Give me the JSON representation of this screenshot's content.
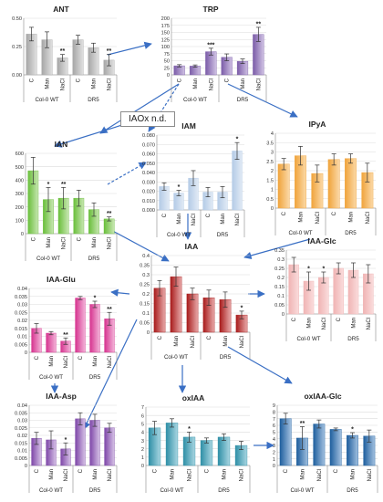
{
  "figure": {
    "boxes": {
      "iaox": "IAOx n.d."
    }
  },
  "chart_data": [
    {
      "type": "bar",
      "title": "ANT",
      "ylim": [
        0,
        0.5
      ],
      "ticks": [
        0,
        0.25,
        0.5
      ],
      "tick_labels": [
        "0.00",
        "0.25",
        "0.50"
      ],
      "categories": [
        "C",
        "Man",
        "NaCl",
        "C",
        "Man",
        "NaCl"
      ],
      "groups": [
        "Col-0 WT",
        "DR5"
      ],
      "values": [
        0.36,
        0.31,
        0.15,
        0.31,
        0.24,
        0.13
      ],
      "errors": [
        0.06,
        0.07,
        0.03,
        0.04,
        0.04,
        0.05
      ],
      "sig": [
        "",
        "",
        "**",
        "",
        "",
        "**"
      ],
      "colors": [
        "#a6a6a6",
        "#a6a6a6",
        "#a6a6a6",
        "#a6a6a6",
        "#a6a6a6",
        "#a6a6a6"
      ],
      "colors_light": [
        "#e0e0e0",
        "#e0e0e0",
        "#e0e0e0",
        "#e0e0e0",
        "#e0e0e0",
        "#e0e0e0"
      ],
      "label_color": "#222222"
    },
    {
      "type": "bar",
      "title": "TRP",
      "ylim": [
        0,
        200
      ],
      "ticks": [
        0,
        25,
        50,
        75,
        100,
        125,
        150,
        175,
        200
      ],
      "tick_labels": [
        "0",
        "25",
        "50",
        "75",
        "100",
        "125",
        "150",
        "175",
        "200"
      ],
      "categories": [
        "C",
        "Man",
        "NaCl",
        "C",
        "Man",
        "NaCl"
      ],
      "groups": [
        "Col-0 WT",
        "DR5"
      ],
      "values": [
        32,
        31,
        82,
        62,
        48,
        143
      ],
      "errors": [
        4,
        4,
        12,
        12,
        8,
        25
      ],
      "sig": [
        "",
        "",
        "***",
        "",
        "",
        "**"
      ],
      "colors": [
        "#7b5ca8",
        "#7b5ca8",
        "#7b5ca8",
        "#7b5ca8",
        "#7b5ca8",
        "#7b5ca8"
      ],
      "colors_light": [
        "#cfc1e3",
        "#cfc1e3",
        "#cfc1e3",
        "#cfc1e3",
        "#cfc1e3",
        "#cfc1e3"
      ],
      "label_color": "#222222"
    },
    {
      "type": "bar",
      "title": "IAN",
      "ylim": [
        0,
        600
      ],
      "ticks": [
        0,
        100,
        200,
        300,
        400,
        500,
        600
      ],
      "tick_labels": [
        "0",
        "100",
        "200",
        "300",
        "400",
        "500",
        "600"
      ],
      "categories": [
        "C",
        "Man",
        "NaCl",
        "C",
        "Man",
        "NaCl"
      ],
      "groups": [
        "Col-0 WT",
        "DR5"
      ],
      "values": [
        470,
        255,
        265,
        265,
        180,
        110
      ],
      "errors": [
        100,
        90,
        80,
        60,
        50,
        15
      ],
      "sig": [
        "",
        "*",
        "**",
        "",
        "",
        "**"
      ],
      "colors": [
        "#6abf3c",
        "#6abf3c",
        "#6abf3c",
        "#6abf3c",
        "#6abf3c",
        "#6abf3c"
      ],
      "colors_light": [
        "#c8e6b2",
        "#c8e6b2",
        "#c8e6b2",
        "#c8e6b2",
        "#c8e6b2",
        "#c8e6b2"
      ],
      "label_color": "#222222"
    },
    {
      "type": "bar",
      "title": "IAM",
      "ylim": [
        0,
        0.08
      ],
      "ticks": [
        0,
        0.01,
        0.02,
        0.03,
        0.04,
        0.05,
        0.06,
        0.07,
        0.08
      ],
      "tick_labels": [
        "0.000",
        "0.010",
        "0.020",
        "0.030",
        "0.040",
        "0.050",
        "0.060",
        "0.070",
        "0.080"
      ],
      "categories": [
        "C",
        "Man",
        "NaCl",
        "C",
        "Man",
        "NaCl"
      ],
      "groups": [
        "Col-0 WT",
        "DR5"
      ],
      "values": [
        0.025,
        0.018,
        0.034,
        0.019,
        0.019,
        0.063
      ],
      "errors": [
        0.004,
        0.003,
        0.008,
        0.005,
        0.006,
        0.009
      ],
      "sig": [
        "",
        "*",
        "",
        "",
        "",
        "*"
      ],
      "colors": [
        "#b4cbe6",
        "#b4cbe6",
        "#b4cbe6",
        "#b4cbe6",
        "#b4cbe6",
        "#b4cbe6"
      ],
      "colors_light": [
        "#e1eaf5",
        "#e1eaf5",
        "#e1eaf5",
        "#e1eaf5",
        "#e1eaf5",
        "#e1eaf5"
      ],
      "label_color": "#222222"
    },
    {
      "type": "bar",
      "title": "IPyA",
      "ylim": [
        0,
        4
      ],
      "ticks": [
        0,
        0.5,
        1,
        1.5,
        2,
        2.5,
        3,
        3.5,
        4
      ],
      "tick_labels": [
        "0",
        "0.5",
        "1",
        "1.5",
        "2",
        "2.5",
        "3",
        "3.5",
        "4"
      ],
      "categories": [
        "C",
        "Man",
        "NaCl",
        "C",
        "Man",
        "NaCl"
      ],
      "groups": [
        "Col-0 WT",
        "DR5"
      ],
      "values": [
        2.35,
        2.8,
        1.85,
        2.6,
        2.65,
        1.9
      ],
      "errors": [
        0.3,
        0.5,
        0.45,
        0.3,
        0.25,
        0.5
      ],
      "sig": [
        "",
        "",
        "",
        "",
        "",
        ""
      ],
      "colors": [
        "#f0a43c",
        "#f0a43c",
        "#f0a43c",
        "#f0a43c",
        "#f0a43c",
        "#f0a43c"
      ],
      "colors_light": [
        "#fbd9a8",
        "#fbd9a8",
        "#fbd9a8",
        "#fbd9a8",
        "#fbd9a8",
        "#fbd9a8"
      ],
      "label_color": "#222222"
    },
    {
      "type": "bar",
      "title": "IAA",
      "ylim": [
        0,
        0.4
      ],
      "ticks": [
        0,
        0.05,
        0.1,
        0.15,
        0.2,
        0.25,
        0.3,
        0.35,
        0.4
      ],
      "tick_labels": [
        "0",
        "0.05",
        "0.1",
        "0.15",
        "0.2",
        "0.25",
        "0.3",
        "0.35",
        "0.4"
      ],
      "categories": [
        "C",
        "Man",
        "NaCl",
        "C",
        "Man",
        "NaCl"
      ],
      "groups": [
        "Col-0 WT",
        "DR5"
      ],
      "values": [
        0.23,
        0.29,
        0.2,
        0.18,
        0.17,
        0.09
      ],
      "errors": [
        0.04,
        0.05,
        0.03,
        0.04,
        0.04,
        0.02
      ],
      "sig": [
        "",
        "",
        "",
        "",
        "",
        "*"
      ],
      "colors": [
        "#a81c1c",
        "#a81c1c",
        "#a81c1c",
        "#a81c1c",
        "#a81c1c",
        "#a81c1c"
      ],
      "colors_light": [
        "#e8a9a9",
        "#e8a9a9",
        "#e8a9a9",
        "#e8a9a9",
        "#e8a9a9",
        "#e8a9a9"
      ],
      "label_color": "#222222"
    },
    {
      "type": "bar",
      "title": "IAA-Glc",
      "ylim": [
        0,
        0.35
      ],
      "ticks": [
        0,
        0.05,
        0.1,
        0.15,
        0.2,
        0.25,
        0.3,
        0.35
      ],
      "tick_labels": [
        "0",
        "0.05",
        "0.1",
        "0.15",
        "0.2",
        "0.25",
        "0.3",
        "0.35"
      ],
      "categories": [
        "C",
        "Man",
        "NaCl",
        "C",
        "Man",
        "NaCl"
      ],
      "groups": [
        "Col-0 WT",
        "DR5"
      ],
      "values": [
        0.27,
        0.18,
        0.2,
        0.25,
        0.24,
        0.22
      ],
      "errors": [
        0.04,
        0.05,
        0.03,
        0.03,
        0.04,
        0.05
      ],
      "sig": [
        "",
        "*",
        "*",
        "",
        "",
        ""
      ],
      "colors": [
        "#f0b4b4",
        "#f0b4b4",
        "#f0b4b4",
        "#f0b4b4",
        "#f0b4b4",
        "#f0b4b4"
      ],
      "colors_light": [
        "#fadcdc",
        "#fadcdc",
        "#fadcdc",
        "#fadcdc",
        "#fadcdc",
        "#fadcdc"
      ],
      "label_color": "#222222"
    },
    {
      "type": "bar",
      "title": "IAA-Glu",
      "ylim": [
        0,
        0.04
      ],
      "ticks": [
        0,
        0.005,
        0.01,
        0.015,
        0.02,
        0.025,
        0.03,
        0.035,
        0.04
      ],
      "tick_labels": [
        "0",
        "0.005",
        "0.01",
        "0.015",
        "0.02",
        "0.025",
        "0.03",
        "0.035",
        "0.04"
      ],
      "categories": [
        "C",
        "Man",
        "NaCl",
        "C",
        "Man",
        "NaCl"
      ],
      "groups": [
        "Col-0 WT",
        "DR5"
      ],
      "values": [
        0.015,
        0.012,
        0.007,
        0.034,
        0.03,
        0.021
      ],
      "errors": [
        0.003,
        0.001,
        0.002,
        0.001,
        0.002,
        0.004
      ],
      "sig": [
        "",
        "",
        "**",
        "",
        "*",
        "**"
      ],
      "colors": [
        "#d6338f",
        "#d6338f",
        "#d6338f",
        "#d6338f",
        "#d6338f",
        "#d6338f"
      ],
      "colors_light": [
        "#f3b3d8",
        "#f3b3d8",
        "#f3b3d8",
        "#f3b3d8",
        "#f3b3d8",
        "#f3b3d8"
      ],
      "label_color": "#222222"
    },
    {
      "type": "bar",
      "title": "IAA-Asp",
      "ylim": [
        0,
        0.04
      ],
      "ticks": [
        0,
        0.005,
        0.01,
        0.015,
        0.02,
        0.025,
        0.03,
        0.035,
        0.04
      ],
      "tick_labels": [
        "0",
        "0.005",
        "0.01",
        "0.015",
        "0.02",
        "0.025",
        "0.03",
        "0.035",
        "0.04"
      ],
      "categories": [
        "C",
        "Man",
        "NaCl",
        "C",
        "Man",
        "NaCl"
      ],
      "groups": [
        "Col-0 WT",
        "DR5"
      ],
      "values": [
        0.018,
        0.017,
        0.011,
        0.031,
        0.03,
        0.025
      ],
      "errors": [
        0.004,
        0.006,
        0.004,
        0.004,
        0.004,
        0.003
      ],
      "sig": [
        "",
        "",
        "*",
        "",
        "",
        ""
      ],
      "colors": [
        "#7e47a8",
        "#7e47a8",
        "#7e47a8",
        "#7e47a8",
        "#7e47a8",
        "#7e47a8"
      ],
      "colors_light": [
        "#d5c1e6",
        "#d5c1e6",
        "#d5c1e6",
        "#d5c1e6",
        "#d5c1e6",
        "#d5c1e6"
      ],
      "label_color": "#222222"
    },
    {
      "type": "bar",
      "title": "oxIAA",
      "ylim": [
        0,
        7
      ],
      "ticks": [
        0,
        1,
        2,
        3,
        4,
        5,
        6,
        7
      ],
      "tick_labels": [
        "0",
        "1",
        "2",
        "3",
        "4",
        "5",
        "6",
        "7"
      ],
      "categories": [
        "C",
        "Man",
        "NaCl",
        "C",
        "Man",
        "NaCl"
      ],
      "groups": [
        "Col-0 WT",
        "DR5"
      ],
      "values": [
        4.5,
        5.1,
        3.4,
        3.0,
        3.4,
        2.4
      ],
      "errors": [
        0.8,
        0.5,
        0.6,
        0.3,
        0.4,
        0.5
      ],
      "sig": [
        "",
        "",
        "*",
        "",
        "",
        ""
      ],
      "colors": [
        "#2e8fa6",
        "#2e8fa6",
        "#2e8fa6",
        "#2e8fa6",
        "#2e8fa6",
        "#2e8fa6"
      ],
      "colors_light": [
        "#a9d6e2",
        "#a9d6e2",
        "#a9d6e2",
        "#a9d6e2",
        "#a9d6e2",
        "#a9d6e2"
      ],
      "label_color": "#222222"
    },
    {
      "type": "bar",
      "title": "oxIAA-Glc",
      "ylim": [
        0,
        9
      ],
      "ticks": [
        0,
        1,
        2,
        3,
        4,
        5,
        6,
        7,
        8,
        9
      ],
      "tick_labels": [
        "0",
        "1",
        "2",
        "3",
        "4",
        "5",
        "6",
        "7",
        "8",
        "9"
      ],
      "categories": [
        "C",
        "Man",
        "NaCl",
        "C",
        "Man",
        "NaCl"
      ],
      "groups": [
        "Col-0 WT",
        "DR5"
      ],
      "values": [
        7.0,
        4.1,
        6.2,
        5.4,
        4.5,
        4.4
      ],
      "errors": [
        0.8,
        1.7,
        0.6,
        0.2,
        0.4,
        0.9
      ],
      "sig": [
        "",
        "**",
        "",
        "",
        "*",
        ""
      ],
      "colors": [
        "#1f5f9e",
        "#1f5f9e",
        "#1f5f9e",
        "#1f5f9e",
        "#1f5f9e",
        "#1f5f9e"
      ],
      "colors_light": [
        "#a3c1e0",
        "#a3c1e0",
        "#a3c1e0",
        "#a3c1e0",
        "#a3c1e0",
        "#a3c1e0"
      ],
      "label_color": "#222222"
    }
  ]
}
